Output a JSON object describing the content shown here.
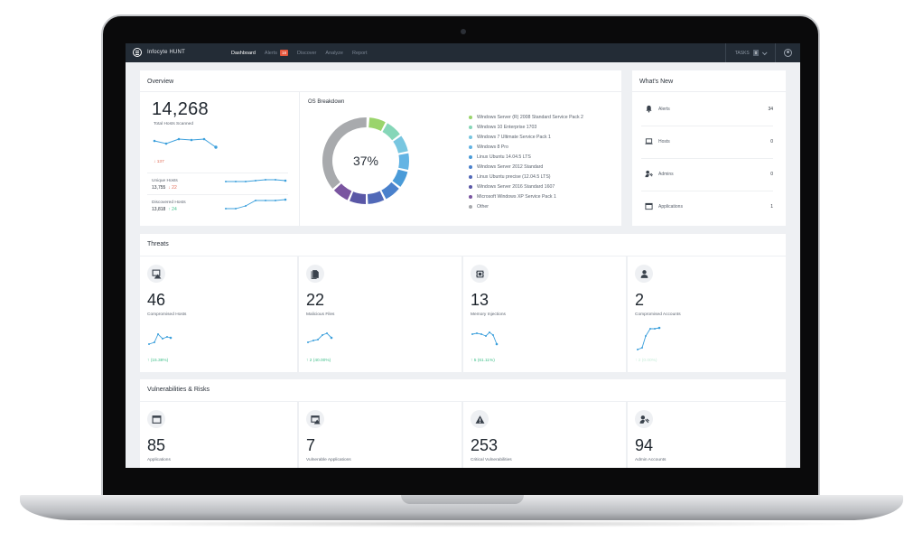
{
  "app": {
    "brand": "Infocyte HUNT",
    "nav": [
      {
        "label": "Dashboard",
        "active": true
      },
      {
        "label": "Alerts",
        "badge": "18"
      },
      {
        "label": "Discover"
      },
      {
        "label": "Analyze"
      },
      {
        "label": "Report"
      }
    ],
    "tasks_label": "TASKS",
    "tasks_count": "0"
  },
  "overview": {
    "title": "Overview",
    "total_hosts": "14,268",
    "total_hosts_label": "Total Hosts Scanned",
    "total_delta": "↓ 137",
    "unique_hosts_label": "Unique Hosts",
    "unique_hosts_value": "13,755",
    "unique_hosts_delta": "↓ 22",
    "discovered_hosts_label": "Discovered Hosts",
    "discovered_hosts_value": "13,818",
    "discovered_hosts_delta": "↑ 24",
    "os_title": "OS Breakdown",
    "os_center": "37%",
    "os_legend": [
      {
        "label": "Windows Server (R) 2008 Standard Service Pack 2",
        "color": "#9ad46b"
      },
      {
        "label": "Windows 10 Enterprise 1703",
        "color": "#86d6b8"
      },
      {
        "label": "Windows 7 Ultimate Service Pack 1",
        "color": "#78c6e0"
      },
      {
        "label": "Windows 8 Pro",
        "color": "#63b4e4"
      },
      {
        "label": "Linux Ubuntu 14.04.5 LTS",
        "color": "#4a9bd8"
      },
      {
        "label": "Windows Server 2012 Standard",
        "color": "#4a81cc"
      },
      {
        "label": "Linux Ubuntu precise (12.04.5 LTS)",
        "color": "#5169b8"
      },
      {
        "label": "Windows Server 2016 Standard 1607",
        "color": "#5a57a6"
      },
      {
        "label": "Microsoft Windows XP Service Pack 1",
        "color": "#7a55a0"
      },
      {
        "label": "Other",
        "color": "#a8aaad"
      }
    ]
  },
  "whats_new": {
    "title": "What's New",
    "items": [
      {
        "label": "Alerts",
        "value": "34",
        "icon": "bell-icon"
      },
      {
        "label": "Hosts",
        "value": "0",
        "icon": "laptop-icon"
      },
      {
        "label": "Admins",
        "value": "0",
        "icon": "admin-icon"
      },
      {
        "label": "Applications",
        "value": "1",
        "icon": "window-icon"
      }
    ]
  },
  "threats": {
    "title": "Threats",
    "tiles": [
      {
        "value": "46",
        "label": "Compromised Hosts",
        "delta": "↑ (15.38%)",
        "icon": "compromised-host-icon"
      },
      {
        "value": "22",
        "label": "Malicious Files",
        "delta": "↑ 2 (40.00%)",
        "icon": "file-icon"
      },
      {
        "value": "13",
        "label": "Memory Injections",
        "delta": "↑ 5 (61.11%)",
        "icon": "chip-icon"
      },
      {
        "value": "2",
        "label": "Compromised Accounts",
        "delta": "↑ 2 (0.00%)",
        "icon": "user-icon"
      }
    ]
  },
  "vulns": {
    "title": "Vulnerabilities & Risks",
    "tiles": [
      {
        "value": "85",
        "label": "Applications",
        "icon": "window-icon"
      },
      {
        "value": "7",
        "label": "Vulnerable Applications",
        "icon": "vulnerable-app-icon"
      },
      {
        "value": "253",
        "label": "Critical Vulnerabilities",
        "icon": "warning-icon"
      },
      {
        "value": "94",
        "label": "Admin Accounts",
        "icon": "admin-icon"
      }
    ]
  }
}
